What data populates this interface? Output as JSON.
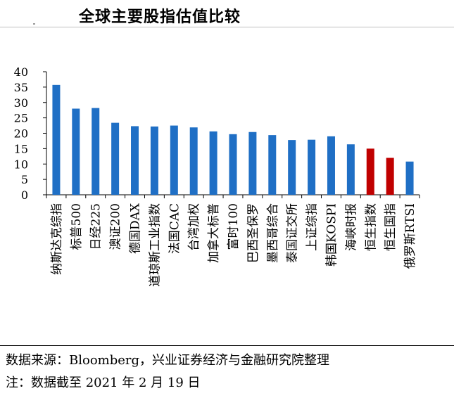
{
  "title": "全球主要股指估值比较",
  "footer": {
    "source": "数据来源：Bloomberg，兴业证券经济与金融研究院整理",
    "note": "注：数据截至 2021 年 2 月 19 日"
  },
  "colors": {
    "blue": "#1f6fc5",
    "red": "#c00000"
  },
  "chart_data": {
    "type": "bar",
    "title": "全球主要股指估值比较",
    "xlabel": "",
    "ylabel": "",
    "ylim": [
      0,
      40
    ],
    "yticks": [
      0,
      5,
      10,
      15,
      20,
      25,
      30,
      35,
      40
    ],
    "grid": false,
    "categories": [
      "纳斯达克综指",
      "标普500",
      "日经225",
      "澳证200",
      "德国DAX",
      "道琼斯工业指数",
      "法国CAC",
      "台湾加权",
      "加拿大标普",
      "富时100",
      "巴西圣保罗",
      "墨西哥综合",
      "泰国证交所",
      "上证综指",
      "韩国KOSPI",
      "海峡时报",
      "恒生指数",
      "恒生国指",
      "俄罗斯RTSI"
    ],
    "values": [
      35.7,
      28.0,
      28.2,
      23.4,
      22.3,
      22.2,
      22.5,
      21.9,
      20.6,
      19.7,
      20.4,
      19.4,
      17.8,
      17.9,
      19.0,
      16.4,
      15.0,
      12.0,
      10.8
    ],
    "bar_colors": [
      "blue",
      "blue",
      "blue",
      "blue",
      "blue",
      "blue",
      "blue",
      "blue",
      "blue",
      "blue",
      "blue",
      "blue",
      "blue",
      "blue",
      "blue",
      "blue",
      "red",
      "red",
      "blue"
    ]
  }
}
